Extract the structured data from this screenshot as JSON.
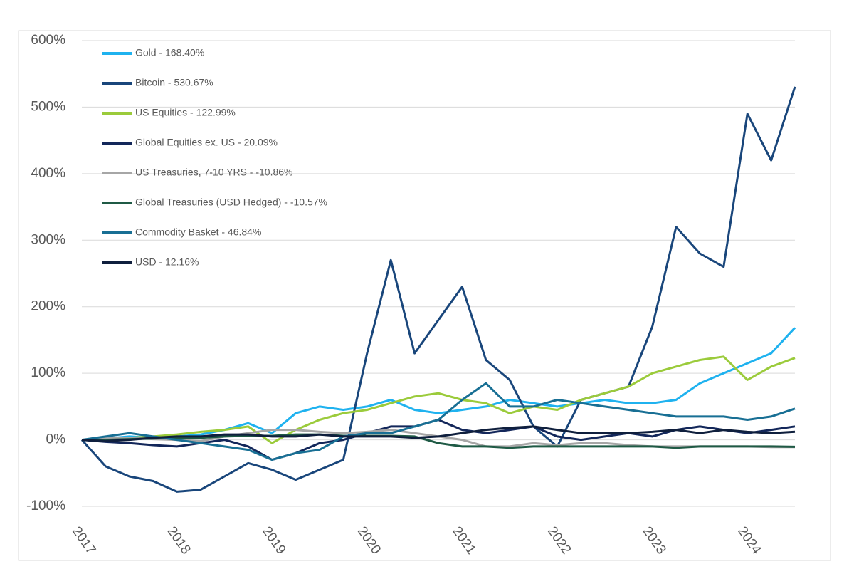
{
  "chart_data": {
    "type": "line",
    "x": [
      2017,
      2017.25,
      2017.5,
      2017.75,
      2018,
      2018.25,
      2018.5,
      2018.75,
      2019,
      2019.25,
      2019.5,
      2019.75,
      2020,
      2020.25,
      2020.5,
      2020.75,
      2021,
      2021.25,
      2021.5,
      2021.75,
      2022,
      2022.25,
      2022.5,
      2022.75,
      2023,
      2023.25,
      2023.5,
      2023.75,
      2024,
      2024.25,
      2024.5
    ],
    "series": [
      {
        "name": "Gold - 168.40%",
        "color": "#1fb2ef",
        "values": [
          0,
          2,
          5,
          3,
          5,
          8,
          15,
          25,
          10,
          40,
          50,
          45,
          50,
          60,
          45,
          40,
          45,
          50,
          60,
          55,
          50,
          55,
          60,
          55,
          55,
          60,
          85,
          100,
          115,
          130,
          168.4
        ]
      },
      {
        "name": "Bitcoin - 530.67%",
        "color": "#19467b",
        "values": [
          0,
          -40,
          -55,
          -62,
          -78,
          -75,
          -55,
          -35,
          -45,
          -60,
          -45,
          -30,
          130,
          270,
          130,
          180,
          230,
          120,
          90,
          20,
          -10,
          60,
          70,
          80,
          170,
          320,
          280,
          260,
          490,
          420,
          530.67
        ]
      },
      {
        "name": "US Equities - 122.99%",
        "color": "#9bcb3b",
        "values": [
          0,
          0,
          3,
          5,
          8,
          12,
          15,
          20,
          -5,
          15,
          30,
          40,
          45,
          55,
          65,
          70,
          60,
          55,
          40,
          50,
          45,
          60,
          70,
          80,
          100,
          110,
          120,
          125,
          90,
          110,
          122.99
        ]
      },
      {
        "name": "Global Equities ex. US - 20.09%",
        "color": "#13275a",
        "values": [
          0,
          -3,
          -5,
          -8,
          -10,
          -5,
          0,
          -10,
          -30,
          -20,
          -5,
          0,
          10,
          20,
          20,
          30,
          15,
          10,
          15,
          20,
          5,
          0,
          5,
          10,
          5,
          15,
          20,
          15,
          10,
          15,
          20.09
        ]
      },
      {
        "name": "US Treasuries, 7-10 YRS - -10.86%",
        "color": "#a6a6a6",
        "values": [
          0,
          2,
          3,
          1,
          0,
          -2,
          5,
          10,
          15,
          15,
          12,
          10,
          12,
          15,
          10,
          5,
          0,
          -10,
          -10,
          -5,
          -8,
          -5,
          -5,
          -8,
          -10,
          -10,
          -10,
          -10,
          -10,
          -11,
          -10.86
        ]
      },
      {
        "name": "Global Treasuries (USD Hedged) - -10.57%",
        "color": "#1f5a45",
        "values": [
          0,
          0,
          1,
          2,
          3,
          3,
          5,
          6,
          6,
          8,
          8,
          6,
          6,
          6,
          5,
          -5,
          -10,
          -10,
          -12,
          -10,
          -10,
          -10,
          -10,
          -10,
          -10,
          -12,
          -10,
          -10,
          -10,
          -10,
          -10.57
        ]
      },
      {
        "name": "Commodity Basket - 46.84%",
        "color": "#186f94",
        "values": [
          0,
          5,
          10,
          5,
          0,
          -5,
          -10,
          -15,
          -30,
          -20,
          -15,
          5,
          10,
          10,
          20,
          30,
          60,
          85,
          50,
          50,
          60,
          55,
          50,
          45,
          40,
          35,
          35,
          35,
          30,
          35,
          46.84
        ]
      },
      {
        "name": "USD - 12.16%",
        "color": "#0f1f3d",
        "values": [
          0,
          -2,
          0,
          3,
          5,
          5,
          8,
          8,
          5,
          5,
          8,
          5,
          5,
          5,
          3,
          5,
          10,
          15,
          18,
          20,
          15,
          10,
          10,
          10,
          12,
          15,
          10,
          15,
          12,
          10,
          12.16
        ]
      }
    ],
    "xlim": [
      2017,
      2024.5
    ],
    "xticks": [
      2017,
      2018,
      2019,
      2020,
      2021,
      2022,
      2023,
      2024
    ],
    "ylim": [
      -100,
      600
    ],
    "yticks": [
      {
        "value": -100,
        "label": "-100%"
      },
      {
        "value": 0,
        "label": "0%"
      },
      {
        "value": 100,
        "label": "100%"
      },
      {
        "value": 200,
        "label": "200%"
      },
      {
        "value": 300,
        "label": "300%"
      },
      {
        "value": 400,
        "label": "400%"
      },
      {
        "value": 500,
        "label": "500%"
      },
      {
        "value": 600,
        "label": "600%"
      }
    ],
    "grid": true,
    "legend": "upper left"
  }
}
